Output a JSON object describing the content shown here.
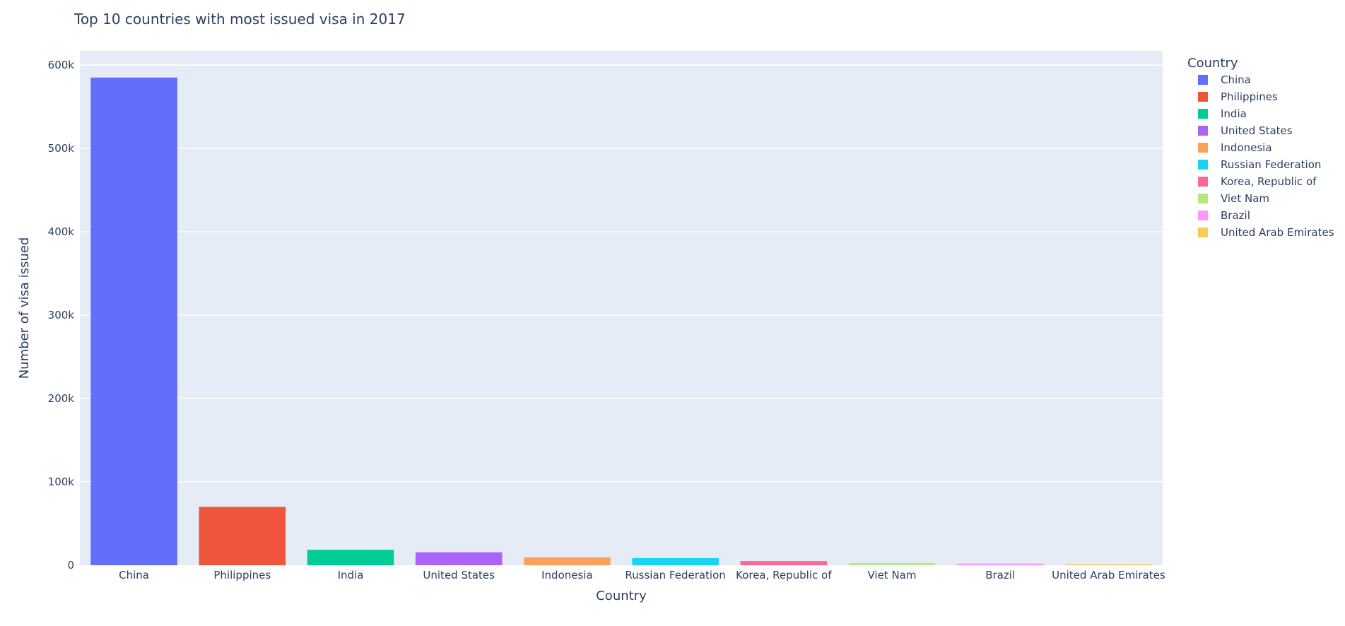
{
  "chart_data": {
    "type": "bar",
    "title": "Top 10 countries with most issued visa in 2017",
    "xlabel": "Country",
    "ylabel": "Number of visa issued",
    "ylim": [
      0,
      617000
    ],
    "yticks": [
      {
        "value": 0,
        "label": "0"
      },
      {
        "value": 100000,
        "label": "100k"
      },
      {
        "value": 200000,
        "label": "200k"
      },
      {
        "value": 300000,
        "label": "300k"
      },
      {
        "value": 400000,
        "label": "400k"
      },
      {
        "value": 500000,
        "label": "500k"
      },
      {
        "value": 600000,
        "label": "600k"
      }
    ],
    "categories": [
      "China",
      "Philippines",
      "India",
      "United States",
      "Indonesia",
      "Russian Federation",
      "Korea, Republic of",
      "Viet Nam",
      "Brazil",
      "United Arab Emirates"
    ],
    "values": [
      585000,
      70000,
      18500,
      15500,
      9500,
      8500,
      5000,
      2500,
      2000,
      1200
    ],
    "colors": [
      "#636efa",
      "#EF553B",
      "#00cc96",
      "#ab63fa",
      "#FFA15A",
      "#19d3f3",
      "#FF6692",
      "#B6E880",
      "#FF97FF",
      "#FECB52"
    ],
    "legend": {
      "title": "Country",
      "placement": "right",
      "entries": [
        "China",
        "Philippines",
        "India",
        "United States",
        "Indonesia",
        "Russian Federation",
        "Korea, Republic of",
        "Viet Nam",
        "Brazil",
        "United Arab Emirates"
      ]
    },
    "grid": true,
    "plot_background": "#E5ECF6"
  }
}
